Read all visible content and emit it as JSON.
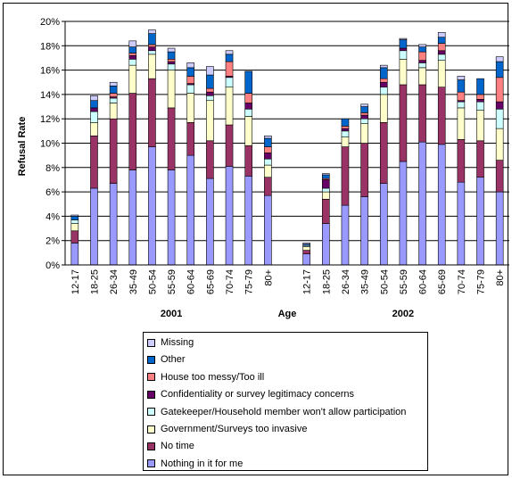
{
  "chart_data": {
    "type": "bar",
    "stacked": true,
    "ylabel": "Refusal Rate",
    "ylim": [
      0,
      20
    ],
    "yticks": [
      "0%",
      "2%",
      "4%",
      "6%",
      "8%",
      "10%",
      "12%",
      "14%",
      "16%",
      "18%",
      "20%"
    ],
    "grid": true,
    "legend_position": "bottom",
    "group_labels": [
      "2001",
      "Age",
      "2002"
    ],
    "categories": [
      "12-17",
      "18-25",
      "26-34",
      "35-49",
      "50-54",
      "55-59",
      "60-64",
      "65-69",
      "70-74",
      "75-79",
      "80+"
    ],
    "groups": [
      {
        "name": "2001",
        "stacks": [
          [
            1.8,
            1.0,
            0.6,
            0.3,
            0.0,
            0.0,
            0.3,
            0.1
          ],
          [
            6.3,
            4.3,
            1.1,
            0.9,
            0.3,
            0.0,
            0.6,
            0.4
          ],
          [
            6.7,
            5.3,
            1.3,
            0.4,
            0.1,
            0.3,
            0.6,
            0.3
          ],
          [
            7.8,
            6.3,
            2.3,
            0.5,
            0.3,
            0.2,
            0.5,
            0.5
          ],
          [
            9.7,
            5.6,
            2.0,
            0.3,
            0.3,
            0.2,
            0.9,
            0.3
          ],
          [
            7.8,
            5.1,
            3.1,
            0.5,
            0.2,
            0.2,
            0.6,
            0.3
          ],
          [
            9.0,
            2.7,
            2.4,
            0.7,
            0.1,
            0.6,
            0.7,
            0.4
          ],
          [
            7.1,
            3.1,
            3.3,
            0.4,
            0.3,
            0.3,
            1.1,
            0.7
          ],
          [
            8.1,
            3.4,
            3.1,
            0.8,
            0.1,
            1.2,
            0.6,
            0.3
          ],
          [
            7.3,
            2.5,
            2.4,
            0.6,
            0.5,
            0.8,
            1.8,
            0.0
          ],
          [
            5.7,
            1.5,
            1.0,
            0.5,
            0.5,
            0.5,
            0.7,
            0.2
          ]
        ]
      },
      {
        "name": "2002",
        "stacks": [
          [
            0.9,
            0.3,
            0.3,
            0.1,
            0.0,
            0.0,
            0.1,
            0.1
          ],
          [
            3.4,
            2.0,
            0.6,
            0.3,
            0.7,
            0.1,
            0.3,
            0.1
          ],
          [
            4.9,
            4.8,
            0.8,
            0.5,
            0.2,
            0.2,
            0.6,
            0.0
          ],
          [
            5.6,
            4.4,
            1.6,
            0.4,
            0.3,
            0.2,
            0.5,
            0.2
          ],
          [
            6.7,
            5.0,
            2.3,
            0.6,
            0.4,
            0.3,
            0.9,
            0.2
          ],
          [
            8.5,
            6.3,
            2.1,
            0.7,
            0.2,
            0.0,
            0.7,
            0.1
          ],
          [
            10.1,
            4.7,
            1.4,
            0.4,
            0.2,
            0.7,
            0.4,
            0.2
          ],
          [
            9.9,
            4.7,
            2.2,
            0.5,
            0.3,
            0.6,
            0.5,
            0.4
          ],
          [
            6.8,
            3.5,
            2.6,
            0.5,
            0.1,
            0.7,
            1.0,
            0.3
          ],
          [
            7.2,
            3.0,
            2.5,
            0.7,
            0.2,
            0.4,
            1.3,
            0.0
          ],
          [
            6.0,
            2.6,
            2.6,
            1.6,
            0.6,
            2.0,
            1.3,
            0.4
          ]
        ]
      }
    ],
    "series": [
      {
        "name": "Nothing in it for me",
        "color": "#9999ff"
      },
      {
        "name": "No time",
        "color": "#993366"
      },
      {
        "name": "Government/Surveys too invasive",
        "color": "#ffffcc"
      },
      {
        "name": "Gatekeeper/Household member won't allow participation",
        "color": "#ccffff"
      },
      {
        "name": "Confidentiality or survey legitimacy concerns",
        "color": "#660066"
      },
      {
        "name": "House too messy/Too ill",
        "color": "#ff8080"
      },
      {
        "name": "Other",
        "color": "#0066cc"
      },
      {
        "name": "Missing",
        "color": "#ccccff"
      }
    ]
  }
}
